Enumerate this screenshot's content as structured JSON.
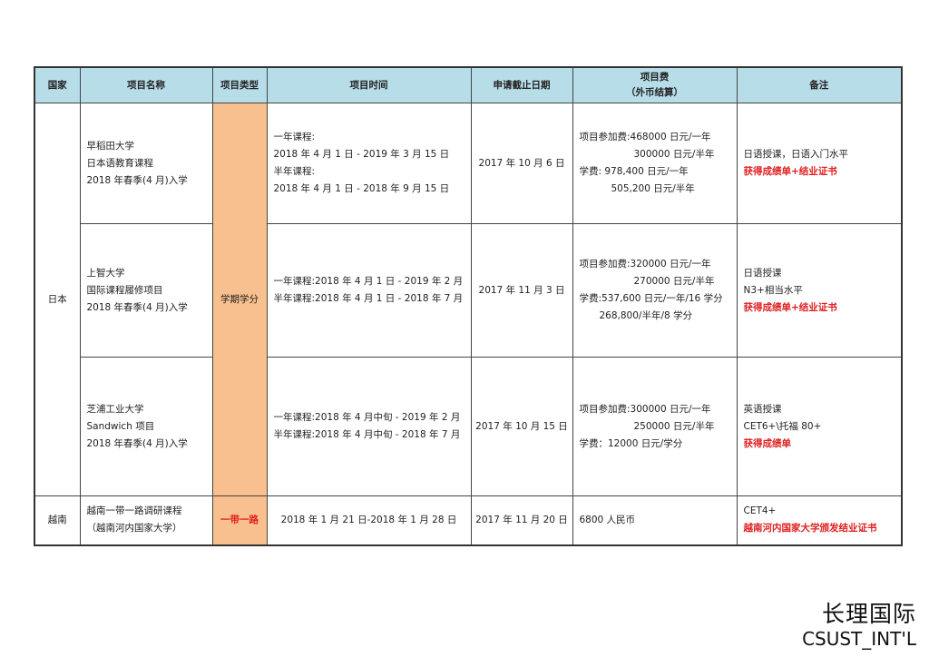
{
  "headers": {
    "country": "国家",
    "name": "项目名称",
    "type": "项目类型",
    "time": "项目时间",
    "deadline": "申请截止日期",
    "fee_line1": "项目费",
    "fee_line2": "（外币结算）",
    "notes": "备注"
  },
  "colors": {
    "header_bg": "#b7dde8",
    "type_bg": "#f9c08f",
    "highlight_text": "#e02020"
  },
  "japan": {
    "country": "日本",
    "type": "学期学分",
    "rows": [
      {
        "name": [
          "早稻田大学",
          "日本语教育课程",
          "2018 年春季(4 月)入学"
        ],
        "time": [
          "一年课程:",
          "2018 年 4 月 1 日 - 2019 年 3 月 15 日",
          "半年课程:",
          "2018 年 4 月 1 日 - 2018 年 9 月 15 日"
        ],
        "deadline": "2017 年 10 月 6 日",
        "fee": [
          "项目参加费:468000 日元/一年",
          "300000 日元/半年",
          "学费:   978,400 日元/一年",
          "505,200 日元/半年"
        ],
        "notes": [
          "日语授课，日语入门水平"
        ],
        "notes_red": "获得成绩单+结业证书"
      },
      {
        "name": [
          "上智大学",
          "国际课程履修项目",
          "2018 年春季(4 月)入学"
        ],
        "time": [
          "一年课程:2018 年 4 月 1 日 - 2019 年 2 月",
          "半年课程:2018 年 4 月 1 日 - 2018 年 7 月"
        ],
        "deadline": "2017 年 11 月 3 日",
        "fee": [
          "项目参加费:320000 日元/一年",
          "270000 日元/半年",
          "学费:537,600 日元/一年/16 学分",
          "268,800/半年/8 学分"
        ],
        "notes": [
          "日语授课",
          "N3+相当水平"
        ],
        "notes_red": "获得成绩单+结业证书"
      },
      {
        "name": [
          "芝浦工业大学",
          "Sandwich 项目",
          "2018 年春季(4 月)入学"
        ],
        "time": [
          "一年课程:2018 年 4 月中旬 - 2019 年 2 月",
          "半年课程:2018 年 4 月中旬 - 2018 年 7 月"
        ],
        "deadline": "2017 年 10 月 15 日",
        "fee": [
          "项目参加费:300000 日元/一年",
          "250000 日元/半年",
          "学费：12000 日元/学分"
        ],
        "notes": [
          "英语授课",
          "CET6+\\托福 80+"
        ],
        "notes_red": "获得成绩单"
      }
    ]
  },
  "vietnam": {
    "country": "越南",
    "name": [
      "越南一带一路调研课程",
      "（越南河内国家大学）"
    ],
    "type": "一带一路",
    "time": "2018 年 1 月 21 日-2018 年 1 月 28 日",
    "deadline": "2017 年 11 月 20 日",
    "fee": "6800 人民币",
    "notes": "CET4+",
    "notes_red": "越南河内国家大学颁发结业证书"
  },
  "logo": {
    "cn": "长理国际",
    "en": "CSUST_INT'L"
  }
}
